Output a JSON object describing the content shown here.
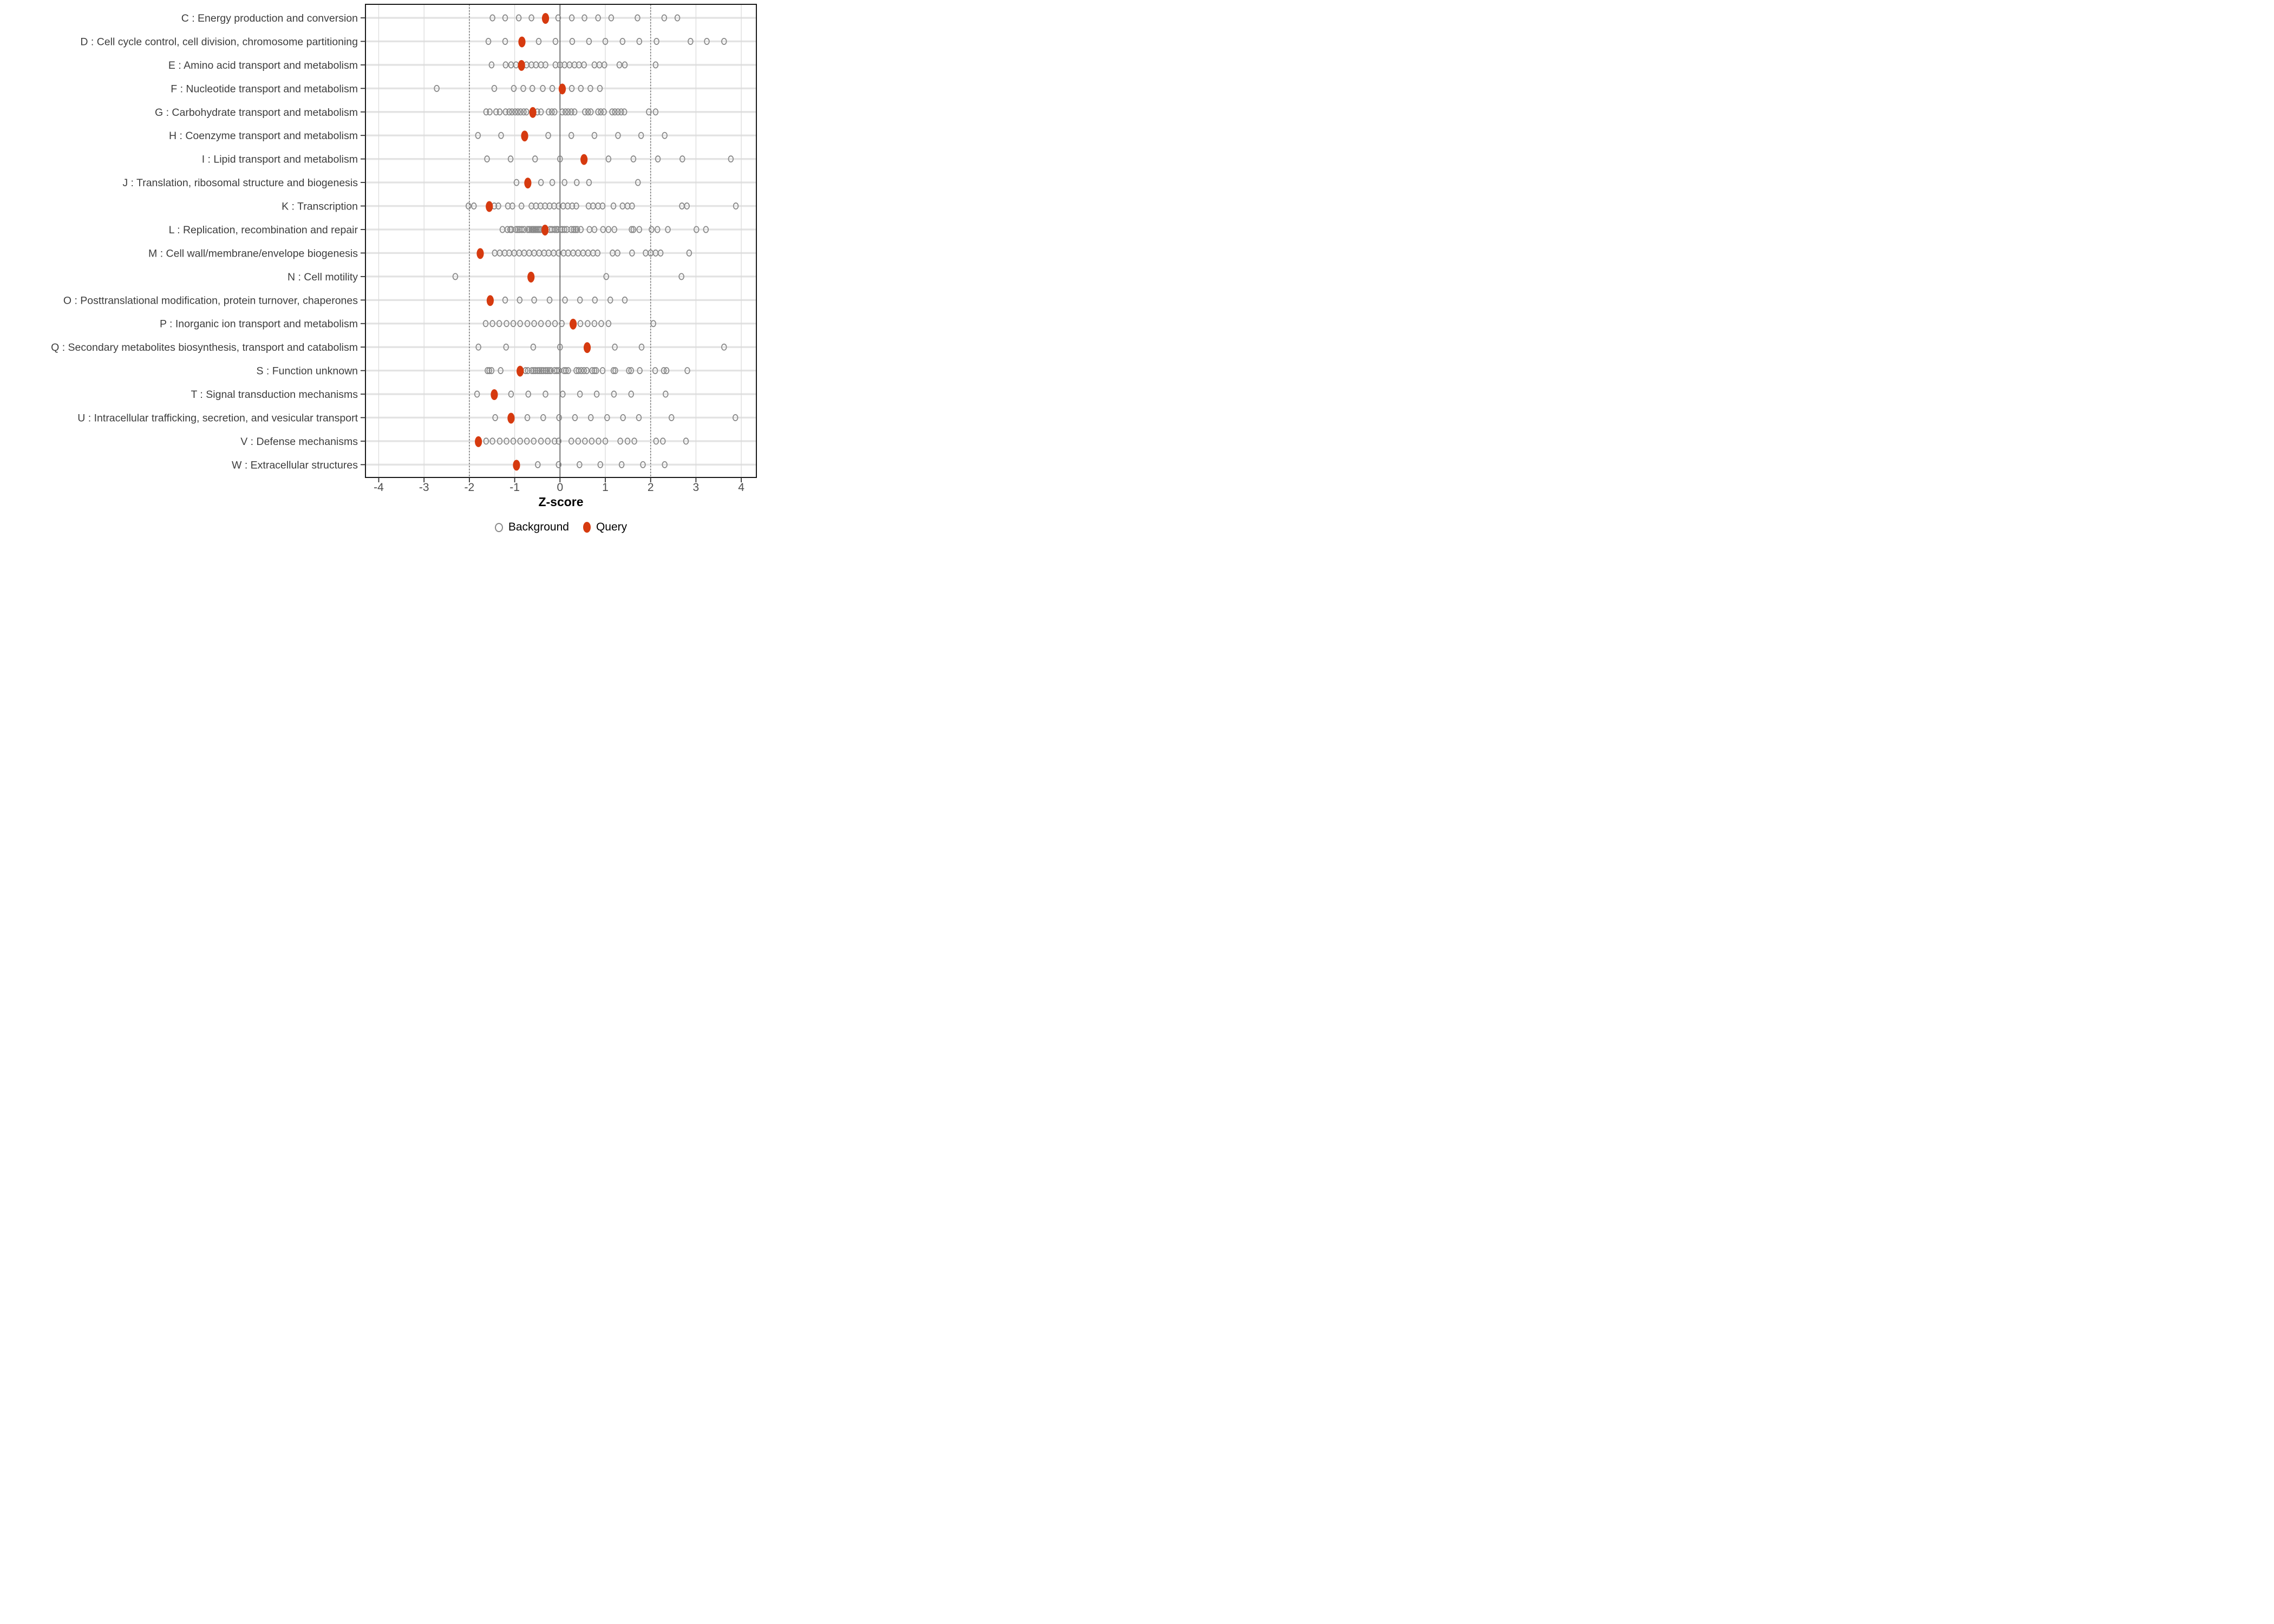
{
  "chart_data": {
    "type": "scatter",
    "variant": "strip-dot-plot",
    "title": "",
    "xlabel": "Z-score",
    "ylabel": "",
    "x_ticks": [
      "-4",
      "-3",
      "-2",
      "-1",
      "0",
      "1",
      "2",
      "3",
      "4"
    ],
    "xlim": [
      -4.3,
      4.35
    ],
    "grid": "on",
    "reference_lines": {
      "solid_at": [
        0
      ],
      "dashed_at": [
        -2,
        2
      ]
    },
    "legend_position": "bottom",
    "legend": [
      {
        "label": "Background",
        "marker": "open-circle",
        "color": "#8A8A8A"
      },
      {
        "label": "Query",
        "marker": "filled-dot",
        "color": "#D63A0F"
      }
    ],
    "rows": [
      {
        "label": "C : Energy production and conversion",
        "query": -0.32,
        "background": [
          -1.49,
          -1.21,
          -0.91,
          -0.63,
          -0.04,
          0.26,
          0.54,
          0.84,
          1.13,
          1.71,
          2.3,
          2.59
        ]
      },
      {
        "label": "D : Cell cycle control, cell division, chromosome partitioning",
        "query": -0.84,
        "background": [
          -1.58,
          -1.21,
          -0.47,
          -0.1,
          0.27,
          0.64,
          1.0,
          1.38,
          1.75,
          2.13,
          2.88,
          3.24,
          3.62
        ]
      },
      {
        "label": "E : Amino acid transport and metabolism",
        "query": -0.85,
        "background": [
          -1.51,
          -1.2,
          -1.08,
          -0.97,
          -0.74,
          -0.63,
          -0.53,
          -0.42,
          -0.32,
          -0.1,
          0.0,
          0.1,
          0.21,
          0.32,
          0.42,
          0.53,
          0.76,
          0.87,
          0.98,
          1.31,
          1.43,
          2.11
        ]
      },
      {
        "label": "F : Nucleotide transport and metabolism",
        "query": 0.05,
        "background": [
          -2.72,
          -1.45,
          -1.02,
          -0.81,
          -0.61,
          -0.38,
          -0.17,
          0.26,
          0.46,
          0.67,
          0.88
        ]
      },
      {
        "label": "G : Carbohydrate transport and metabolism",
        "query": -0.6,
        "background": [
          -1.63,
          -1.55,
          -1.41,
          -1.33,
          -1.2,
          -1.12,
          -1.06,
          -0.99,
          -0.93,
          -0.87,
          -0.8,
          -0.74,
          -0.5,
          -0.42,
          -0.25,
          -0.18,
          -0.12,
          0.05,
          0.12,
          0.18,
          0.25,
          0.32,
          0.55,
          0.62,
          0.68,
          0.84,
          0.9,
          0.97,
          1.15,
          1.21,
          1.28,
          1.35,
          1.42,
          1.96,
          2.11
        ]
      },
      {
        "label": "H : Coenzyme transport and metabolism",
        "query": -0.78,
        "background": [
          -1.81,
          -1.3,
          -0.26,
          0.25,
          0.76,
          1.28,
          1.79,
          2.31
        ]
      },
      {
        "label": "I : Lipid transport and metabolism",
        "query": 0.53,
        "background": [
          -1.61,
          -1.09,
          -0.55,
          0.0,
          1.07,
          1.62,
          2.16,
          2.7,
          3.77
        ]
      },
      {
        "label": "J : Translation, ribosomal structure and biogenesis",
        "query": -0.71,
        "background": [
          -0.96,
          -0.42,
          -0.17,
          0.1,
          0.37,
          0.64,
          1.72
        ]
      },
      {
        "label": "K : Transcription",
        "query": -1.56,
        "background": [
          -2.02,
          -1.9,
          -1.45,
          -1.36,
          -1.15,
          -1.05,
          -0.85,
          -0.63,
          -0.53,
          -0.43,
          -0.33,
          -0.23,
          -0.13,
          -0.03,
          0.07,
          0.17,
          0.27,
          0.36,
          0.63,
          0.73,
          0.84,
          0.94,
          1.18,
          1.38,
          1.49,
          1.59,
          2.69,
          2.8,
          3.88
        ]
      },
      {
        "label": "L : Replication, recombination and repair",
        "query": -0.33,
        "background": [
          -1.27,
          -1.16,
          -1.1,
          -1.07,
          -0.97,
          -0.93,
          -0.89,
          -0.84,
          -0.79,
          -0.71,
          -0.67,
          -0.63,
          -0.6,
          -0.58,
          -0.55,
          -0.52,
          -0.49,
          -0.46,
          -0.43,
          -0.22,
          -0.18,
          -0.12,
          -0.08,
          -0.05,
          0.01,
          0.05,
          0.1,
          0.15,
          0.25,
          0.3,
          0.34,
          0.38,
          0.46,
          0.65,
          0.76,
          0.95,
          1.07,
          1.2,
          1.58,
          1.62,
          1.75,
          2.02,
          2.15,
          2.38,
          3.01,
          3.22
        ]
      },
      {
        "label": "M : Cell wall/membrane/envelope biogenesis",
        "query": -1.76,
        "background": [
          -1.44,
          -1.33,
          -1.22,
          -1.12,
          -1.01,
          -0.9,
          -0.79,
          -0.68,
          -0.57,
          -0.46,
          -0.35,
          -0.25,
          -0.14,
          -0.03,
          0.08,
          0.18,
          0.29,
          0.4,
          0.51,
          0.62,
          0.73,
          0.83,
          1.16,
          1.27,
          1.59,
          1.89,
          2.0,
          2.11,
          2.22,
          2.85
        ]
      },
      {
        "label": "N : Cell motility",
        "query": -0.64,
        "background": [
          -2.31,
          1.02,
          2.68
        ]
      },
      {
        "label": "O : Posttranslational modification, protein turnover, chaperones",
        "query": -1.54,
        "background": [
          -1.21,
          -0.89,
          -0.57,
          -0.23,
          0.11,
          0.44,
          0.77,
          1.11,
          1.43
        ]
      },
      {
        "label": "P : Inorganic ion transport and metabolism",
        "query": 0.29,
        "background": [
          -1.64,
          -1.49,
          -1.34,
          -1.18,
          -1.03,
          -0.88,
          -0.72,
          -0.57,
          -0.42,
          -0.26,
          -0.11,
          0.04,
          0.45,
          0.61,
          0.76,
          0.91,
          1.07,
          2.06
        ]
      },
      {
        "label": "Q : Secondary metabolites biosynthesis, transport and catabolism",
        "query": 0.6,
        "background": [
          -1.8,
          -1.19,
          -0.59,
          0.0,
          1.21,
          1.8,
          3.62
        ]
      },
      {
        "label": "S : Function unknown",
        "query": -0.88,
        "background": [
          -1.6,
          -1.56,
          -1.51,
          -1.31,
          -0.76,
          -0.71,
          -0.62,
          -0.58,
          -0.54,
          -0.49,
          -0.45,
          -0.41,
          -0.37,
          -0.32,
          -0.28,
          -0.24,
          -0.2,
          -0.12,
          -0.07,
          -0.02,
          0.09,
          0.13,
          0.18,
          0.36,
          0.41,
          0.47,
          0.53,
          0.59,
          0.71,
          0.76,
          0.8,
          0.94,
          1.18,
          1.22,
          1.52,
          1.57,
          1.76,
          2.1,
          2.29,
          2.35,
          2.81
        ]
      },
      {
        "label": "T : Signal transduction mechanisms",
        "query": -1.45,
        "background": [
          -1.83,
          -1.08,
          -0.7,
          -0.32,
          0.06,
          0.44,
          0.81,
          1.19,
          1.57,
          2.33
        ]
      },
      {
        "label": "U : Intracellular trafficking, secretion, and vesicular transport",
        "query": -1.08,
        "background": [
          -1.43,
          -0.72,
          -0.37,
          -0.02,
          0.33,
          0.68,
          1.04,
          1.39,
          1.74,
          2.46,
          3.87
        ]
      },
      {
        "label": "V : Defense mechanisms",
        "query": -1.8,
        "background": [
          -1.63,
          -1.49,
          -1.33,
          -1.18,
          -1.03,
          -0.88,
          -0.73,
          -0.58,
          -0.42,
          -0.27,
          -0.12,
          -0.03,
          0.25,
          0.4,
          0.55,
          0.7,
          0.85,
          1.0,
          1.33,
          1.49,
          1.64,
          2.12,
          2.27,
          2.78
        ]
      },
      {
        "label": "W : Extracellular structures",
        "query": -0.96,
        "background": [
          -0.49,
          -0.03,
          0.43,
          0.89,
          1.36,
          1.83,
          2.31
        ]
      }
    ]
  },
  "colors": {
    "query": "#D63A0F",
    "background_stroke": "#8A8A8A",
    "grid_horizontal": "#E3E3E3",
    "grid_vertical": "#D9D9D9",
    "dashed_line": "#6F6F6F",
    "zero_line": "#555555",
    "panel_border": "#1A1A1A",
    "tick_label": "#4D4D4D",
    "category_label": "#3D3D3D"
  }
}
